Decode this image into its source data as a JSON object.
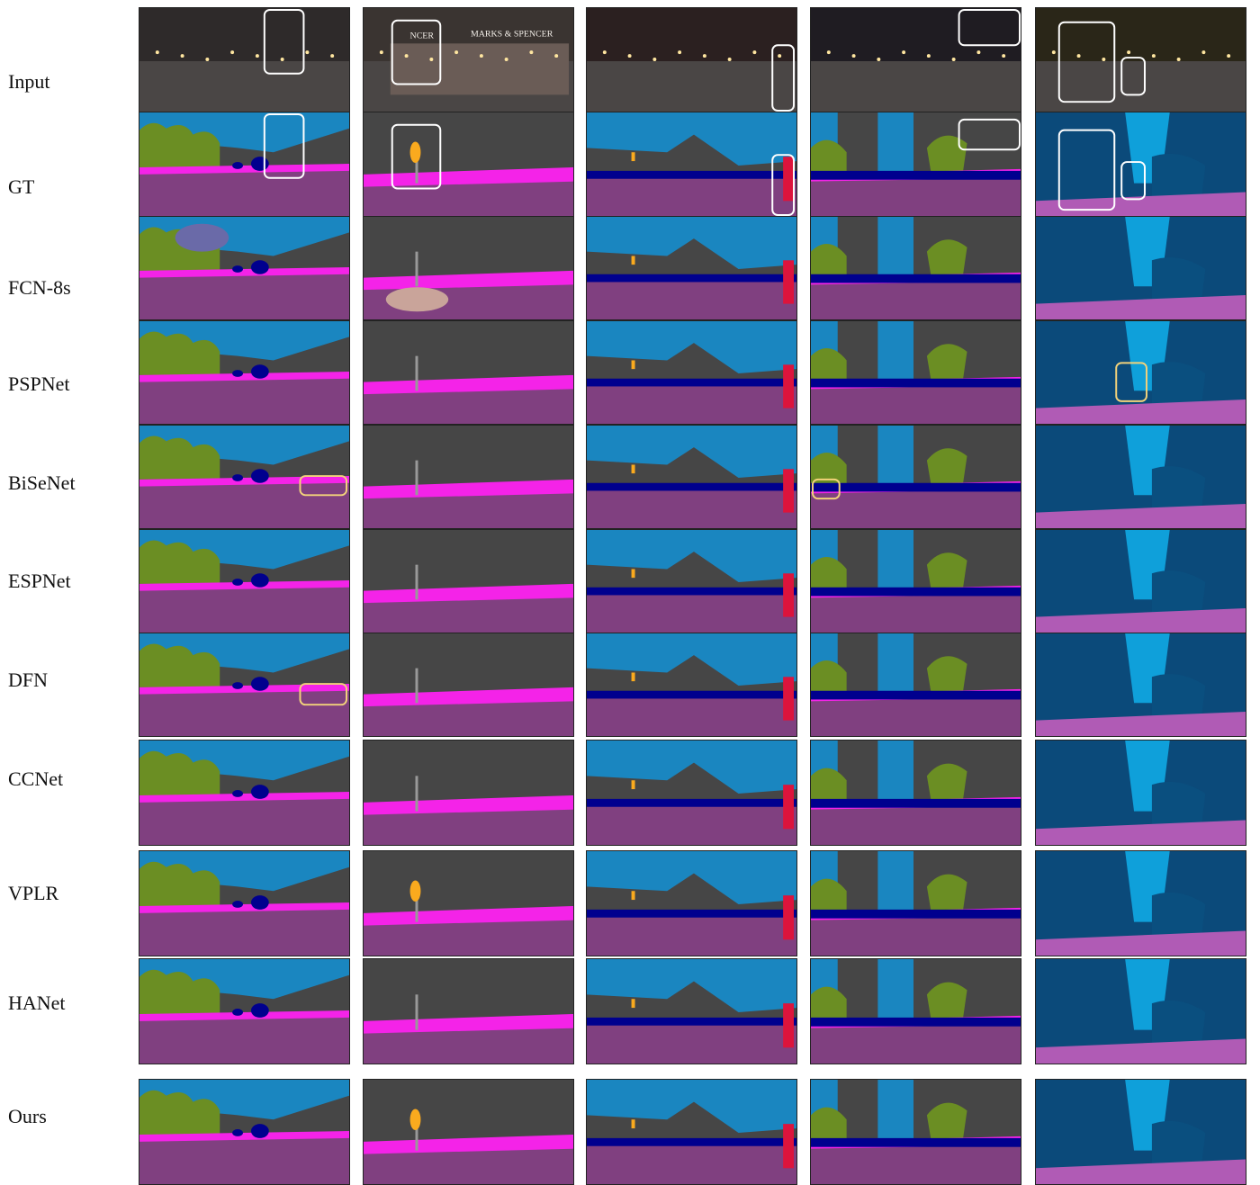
{
  "rows": [
    {
      "label": "Input"
    },
    {
      "label": "GT"
    },
    {
      "label": "FCN-8s"
    },
    {
      "label": "PSPNet"
    },
    {
      "label": "BiSeNet"
    },
    {
      "label": "ESPNet"
    },
    {
      "label": "DFN"
    },
    {
      "label": "CCNet"
    },
    {
      "label": "VPLR"
    },
    {
      "label": "HANet"
    },
    {
      "label": "Ours"
    }
  ],
  "input_signs": {
    "shop_name": "MARKS & SPENCER",
    "shop_name_partial": "NCER"
  },
  "colors": {
    "sky": "#1a86c0",
    "building": "#464646",
    "vegetation": "#6b8e23",
    "road": "#804080",
    "sidewalk": "#f423e8",
    "car": "#00008e",
    "traffic_light": "#faaa1e",
    "person": "#dc143c",
    "pole": "#999999",
    "terrain": "#98fb98",
    "wall": "#b9a0a8",
    "bus": "#0b4a7a",
    "highlight_box_white": "#ffffff",
    "highlight_box_yellow": "#f2d27a"
  }
}
